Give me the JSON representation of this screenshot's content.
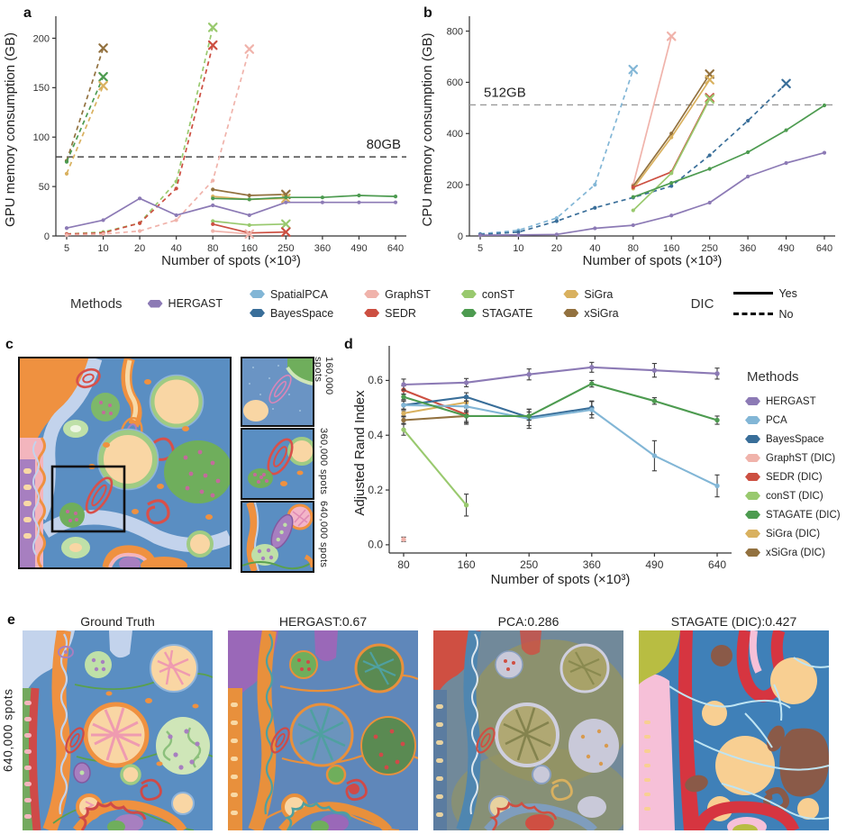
{
  "colors": {
    "HERGAST": "#8c7ab5",
    "SpatialPCA": "#82b6d6",
    "PCA": "#82b6d6",
    "BayesSpace": "#396e99",
    "GraphST": "#f0b3ab",
    "SEDR": "#cc4f41",
    "conST": "#99c96e",
    "STAGATE": "#4d9b50",
    "SiGra": "#d9b15f",
    "xSiGra": "#92713f"
  },
  "panels": {
    "a": {
      "letter": "a"
    },
    "b": {
      "letter": "b"
    },
    "c": {
      "letter": "c",
      "inset_labels": [
        "160,000 spots",
        "360,000 spots",
        "640,000 spots"
      ]
    },
    "d": {
      "letter": "d",
      "legend_title": "Methods",
      "legend": [
        {
          "label": "HERGAST",
          "color": "#8c7ab5"
        },
        {
          "label": "PCA",
          "color": "#82b6d6"
        },
        {
          "label": "BayesSpace",
          "color": "#396e99"
        },
        {
          "label": "GraphST (DIC)",
          "color": "#f0b3ab"
        },
        {
          "label": "SEDR (DIC)",
          "color": "#cc4f41"
        },
        {
          "label": "conST (DIC)",
          "color": "#99c96e"
        },
        {
          "label": "STAGATE (DIC)",
          "color": "#4d9b50"
        },
        {
          "label": "SiGra (DIC)",
          "color": "#d9b15f"
        },
        {
          "label": "xSiGra (DIC)",
          "color": "#92713f"
        }
      ]
    },
    "e": {
      "letter": "e",
      "row_label": "640,000 spots",
      "titles": [
        "Ground Truth",
        "HERGAST:0.67",
        "PCA:0.286",
        "STAGATE (DIC):0.427"
      ]
    }
  },
  "legend": {
    "methods_title": "Methods",
    "methods": [
      {
        "label": "HERGAST",
        "color": "#8c7ab5"
      },
      {
        "label": "SpatialPCA",
        "color": "#82b6d6"
      },
      {
        "label": "BayesSpace",
        "color": "#396e99"
      },
      {
        "label": "GraphST",
        "color": "#f0b3ab"
      },
      {
        "label": "SEDR",
        "color": "#cc4f41"
      },
      {
        "label": "conST",
        "color": "#99c96e"
      },
      {
        "label": "STAGATE",
        "color": "#4d9b50"
      },
      {
        "label": "SiGra",
        "color": "#d9b15f"
      },
      {
        "label": "xSiGra",
        "color": "#92713f"
      }
    ],
    "dic_title": "DIC",
    "dic_items": [
      {
        "label": "Yes",
        "style": "solid"
      },
      {
        "label": "No",
        "style": "dashed"
      }
    ]
  },
  "chart_data": [
    {
      "id": "gpu",
      "type": "line",
      "title": "",
      "xlabel": "Number of spots (×10³)",
      "ylabel": "GPU memory consumption (GB)",
      "categories": [
        5,
        10,
        20,
        40,
        80,
        160,
        250,
        360,
        490,
        640
      ],
      "yticks": [
        "0",
        "50",
        "100",
        "150",
        "200"
      ],
      "ytick_values": [
        0,
        50,
        100,
        150,
        200
      ],
      "ylim": [
        0,
        215
      ],
      "grid": false,
      "ref_line": {
        "value": 80,
        "label": "80GB",
        "color": "#3a3a3a",
        "label_side": "right"
      },
      "series": [
        {
          "name": "xSiGra",
          "dic": false,
          "x": [
            5,
            10
          ],
          "y": [
            76,
            190
          ],
          "fail_end": true
        },
        {
          "name": "STAGATE",
          "dic": false,
          "x": [
            5,
            10
          ],
          "y": [
            75,
            161
          ],
          "fail_end": true
        },
        {
          "name": "SiGra",
          "dic": false,
          "x": [
            5,
            10
          ],
          "y": [
            63,
            152
          ],
          "fail_end": true
        },
        {
          "name": "conST",
          "dic": false,
          "x": [
            5,
            10,
            20,
            40,
            80
          ],
          "y": [
            2,
            4,
            13,
            55,
            211
          ],
          "fail_end": true
        },
        {
          "name": "SEDR",
          "dic": false,
          "x": [
            5,
            10,
            20,
            40,
            80
          ],
          "y": [
            2,
            3,
            13,
            48,
            193
          ],
          "fail_end": true
        },
        {
          "name": "GraphST",
          "dic": false,
          "x": [
            5,
            10,
            20,
            40,
            80,
            160
          ],
          "y": [
            1,
            2,
            5,
            16,
            56,
            189
          ],
          "fail_end": true
        },
        {
          "name": "xSiGra",
          "dic": true,
          "x": [
            80,
            160,
            250
          ],
          "y": [
            47,
            41,
            42
          ],
          "fail_end": true
        },
        {
          "name": "SiGra",
          "dic": true,
          "x": [
            80,
            160,
            250
          ],
          "y": [
            40,
            37,
            38
          ],
          "fail_end": true
        },
        {
          "name": "STAGATE",
          "dic": true,
          "x": [
            80,
            160,
            250,
            360,
            490,
            640
          ],
          "y": [
            38,
            37,
            39,
            39,
            41,
            40
          ],
          "fail_end": false
        },
        {
          "name": "conST",
          "dic": true,
          "x": [
            80,
            160,
            250
          ],
          "y": [
            15,
            11,
            12
          ],
          "fail_end": true
        },
        {
          "name": "SEDR",
          "dic": true,
          "x": [
            80,
            160,
            250
          ],
          "y": [
            12,
            3,
            4
          ],
          "fail_end": true
        },
        {
          "name": "GraphST",
          "dic": true,
          "x": [
            80,
            160
          ],
          "y": [
            5,
            2
          ],
          "fail_end": true
        },
        {
          "name": "HERGAST",
          "dic": true,
          "x": [
            5,
            10,
            20,
            40,
            80,
            160,
            250,
            360,
            490,
            640
          ],
          "y": [
            8,
            16,
            38,
            21,
            31,
            21,
            34,
            34,
            34,
            34
          ],
          "fail_end": false
        }
      ]
    },
    {
      "id": "cpu",
      "type": "line",
      "title": "",
      "xlabel": "Number of spots (×10³)",
      "ylabel": "CPU memory consumption (GB)",
      "categories": [
        5,
        10,
        20,
        40,
        80,
        160,
        250,
        360,
        490,
        640
      ],
      "yticks": [
        "0",
        "200",
        "400",
        "600",
        "800"
      ],
      "ytick_values": [
        0,
        200,
        400,
        600,
        800
      ],
      "ylim": [
        0,
        830
      ],
      "grid": false,
      "ref_line": {
        "value": 512,
        "label": "512GB",
        "color": "#9a9a9a",
        "label_side": "left"
      },
      "series": [
        {
          "name": "SpatialPCA",
          "dic": false,
          "x": [
            5,
            10,
            20,
            40,
            80
          ],
          "y": [
            8,
            22,
            70,
            200,
            650
          ],
          "fail_end": true
        },
        {
          "name": "BayesSpace",
          "dic": false,
          "x": [
            5,
            10,
            20,
            40,
            80,
            160,
            250,
            360,
            490
          ],
          "y": [
            6,
            15,
            58,
            110,
            150,
            195,
            315,
            450,
            595
          ],
          "fail_end": true
        },
        {
          "name": "GraphST",
          "dic": true,
          "x": [
            80,
            160
          ],
          "y": [
            200,
            780
          ],
          "fail_end": true
        },
        {
          "name": "xSiGra",
          "dic": true,
          "x": [
            80,
            160,
            250
          ],
          "y": [
            195,
            400,
            632
          ],
          "fail_end": true
        },
        {
          "name": "SiGra",
          "dic": true,
          "x": [
            80,
            160,
            250
          ],
          "y": [
            185,
            385,
            610
          ],
          "fail_end": true
        },
        {
          "name": "SEDR",
          "dic": true,
          "x": [
            80,
            160,
            250
          ],
          "y": [
            190,
            250,
            540
          ],
          "fail_end": true
        },
        {
          "name": "conST",
          "dic": true,
          "x": [
            80,
            160,
            250
          ],
          "y": [
            100,
            245,
            535
          ],
          "fail_end": true
        },
        {
          "name": "STAGATE",
          "dic": true,
          "x": [
            80,
            160,
            250,
            360,
            490,
            640
          ],
          "y": [
            152,
            207,
            262,
            327,
            413,
            510
          ],
          "fail_end": false
        },
        {
          "name": "HERGAST",
          "dic": true,
          "x": [
            5,
            10,
            20,
            40,
            80,
            160,
            250,
            360,
            490,
            640
          ],
          "y": [
            3,
            4,
            6,
            30,
            42,
            80,
            130,
            232,
            285,
            325
          ],
          "fail_end": false
        }
      ]
    },
    {
      "id": "ari",
      "type": "line",
      "title": "",
      "xlabel": "Number of spots (×10³)",
      "ylabel": "Adjusted Rand Index",
      "categories": [
        80,
        160,
        250,
        360,
        490,
        640
      ],
      "yticks": [
        "0.0",
        "0.2",
        "0.4",
        "0.6"
      ],
      "ytick_values": [
        0,
        0.2,
        0.4,
        0.6
      ],
      "ylim": [
        -0.03,
        0.7
      ],
      "grid": false,
      "error_bars": true,
      "series": [
        {
          "name": "GraphST",
          "color_key": "GraphST",
          "x": [
            80
          ],
          "y": [
            0.02
          ],
          "err": [
            0.008
          ]
        },
        {
          "name": "SiGra",
          "color_key": "SiGra",
          "x": [
            80,
            160
          ],
          "y": [
            0.48,
            0.52
          ],
          "err": [
            0.01,
            0.015
          ]
        },
        {
          "name": "xSiGra",
          "color_key": "xSiGra",
          "x": [
            80,
            160
          ],
          "y": [
            0.455,
            0.47
          ],
          "err": [
            0.012,
            0.03
          ]
        },
        {
          "name": "SEDR",
          "color_key": "SEDR",
          "x": [
            80,
            160
          ],
          "y": [
            0.565,
            0.475
          ],
          "err": [
            0.015,
            0.03
          ]
        },
        {
          "name": "conST",
          "color_key": "conST",
          "x": [
            80,
            160
          ],
          "y": [
            0.42,
            0.145
          ],
          "err": [
            0.02,
            0.04
          ]
        },
        {
          "name": "BayesSpace",
          "color_key": "BayesSpace",
          "x": [
            80,
            160,
            250,
            360
          ],
          "y": [
            0.51,
            0.54,
            0.465,
            0.5
          ],
          "err": [
            0.015,
            0.015,
            0.03,
            0.025
          ]
        },
        {
          "name": "PCA",
          "color_key": "PCA",
          "x": [
            80,
            160,
            250,
            360,
            490,
            640
          ],
          "y": [
            0.51,
            0.505,
            0.46,
            0.493,
            0.325,
            0.215
          ],
          "err": [
            0.015,
            0.02,
            0.035,
            0.03,
            0.055,
            0.04
          ]
        },
        {
          "name": "STAGATE",
          "color_key": "STAGATE",
          "x": [
            80,
            160,
            250,
            360,
            490,
            640
          ],
          "y": [
            0.54,
            0.47,
            0.47,
            0.588,
            0.525,
            0.455
          ],
          "err": [
            0.01,
            0.02,
            0.015,
            0.012,
            0.012,
            0.015
          ]
        },
        {
          "name": "HERGAST",
          "color_key": "HERGAST",
          "x": [
            80,
            160,
            250,
            360,
            490,
            640
          ],
          "y": [
            0.585,
            0.592,
            0.622,
            0.648,
            0.637,
            0.625
          ],
          "err": [
            0.02,
            0.015,
            0.02,
            0.018,
            0.025,
            0.02
          ]
        }
      ]
    }
  ]
}
